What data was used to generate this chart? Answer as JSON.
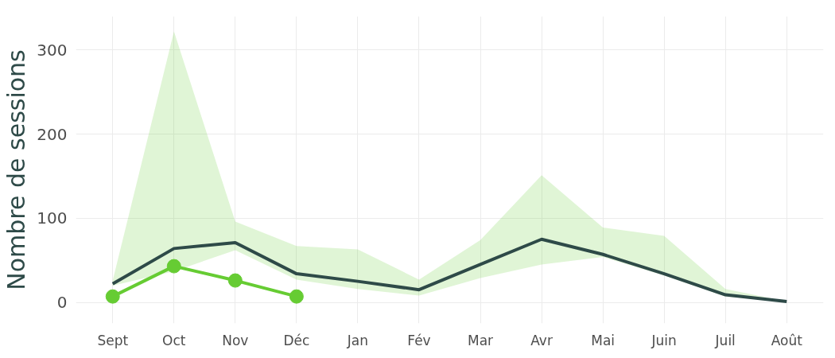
{
  "chart_data": {
    "type": "line",
    "ylabel": "Nombre de sessions",
    "categories": [
      "Sept",
      "Oct",
      "Nov",
      "Déc",
      "Jan",
      "Fév",
      "Mar",
      "Avr",
      "Mai",
      "Juin",
      "Juil",
      "Août"
    ],
    "series": [
      {
        "color": "#2e4a48",
        "marker": "none",
        "values": [
          22,
          64,
          71,
          34,
          25,
          15,
          45,
          75,
          57,
          34,
          9,
          1
        ],
        "lower": [
          20,
          37,
          62,
          27,
          16,
          8,
          29,
          45,
          54,
          32,
          7,
          1
        ],
        "upper": [
          26,
          322,
          96,
          67,
          63,
          27,
          74,
          151,
          89,
          79,
          16,
          1
        ]
      },
      {
        "color": "#66cc33",
        "marker": "circle",
        "values": [
          7,
          43,
          26,
          7,
          null,
          null,
          null,
          null,
          null,
          null,
          null,
          null
        ]
      }
    ],
    "ylim": [
      -25,
      340
    ],
    "yticks": [
      0,
      100,
      200,
      300
    ],
    "grid": true
  }
}
